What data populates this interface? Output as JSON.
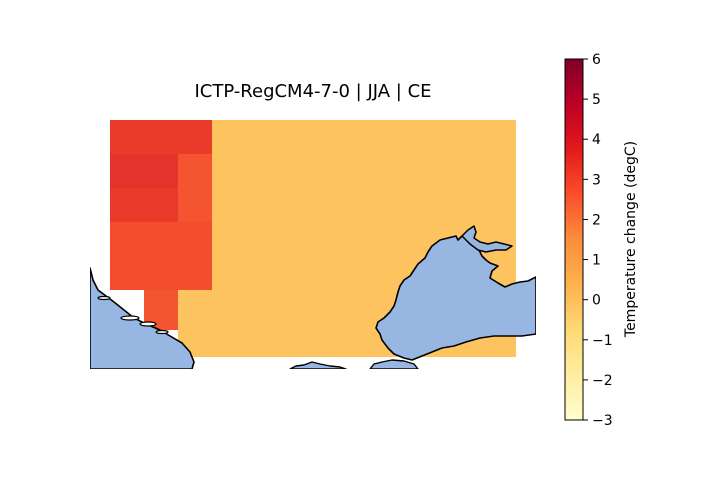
{
  "title": "ICTP-RegCM4-7-0 | JJA | CE",
  "colorbar": {
    "label": "Temperature change (degC)",
    "ticks": [
      "−3",
      "−2",
      "−1",
      "0",
      "1",
      "2",
      "3",
      "4",
      "5",
      "6"
    ],
    "range": [
      -3,
      6
    ],
    "colormap": "YlOrRd",
    "stops": [
      "#ffffcc",
      "#ffeda0",
      "#fed976",
      "#feb24c",
      "#fd8d3c",
      "#fc4e2a",
      "#e31a1c",
      "#bd0026",
      "#800026"
    ]
  },
  "colors": {
    "sea": "#97b6e1",
    "coast": "#000000",
    "missing": "#ffffff"
  },
  "field": {
    "units": "degC",
    "cells": [
      {
        "id": "nw-a",
        "value": 3.2,
        "color": "#e93a2a"
      },
      {
        "id": "nw-b",
        "value": 3.3,
        "color": "#e8392a"
      },
      {
        "id": "nw-c",
        "value": 3.4,
        "color": "#e4332a"
      },
      {
        "id": "w-1",
        "value": 2.9,
        "color": "#f04a2d"
      },
      {
        "id": "w-2",
        "value": 2.8,
        "color": "#f2502f"
      },
      {
        "id": "w-3",
        "value": 2.6,
        "color": "#f45430"
      },
      {
        "id": "w-4",
        "value": 2.7,
        "color": "#f35530"
      },
      {
        "id": "w-5",
        "value": 2.7,
        "color": "#f35530"
      },
      {
        "id": "east",
        "value": 0.5,
        "color": "#fdc35f"
      }
    ]
  }
}
